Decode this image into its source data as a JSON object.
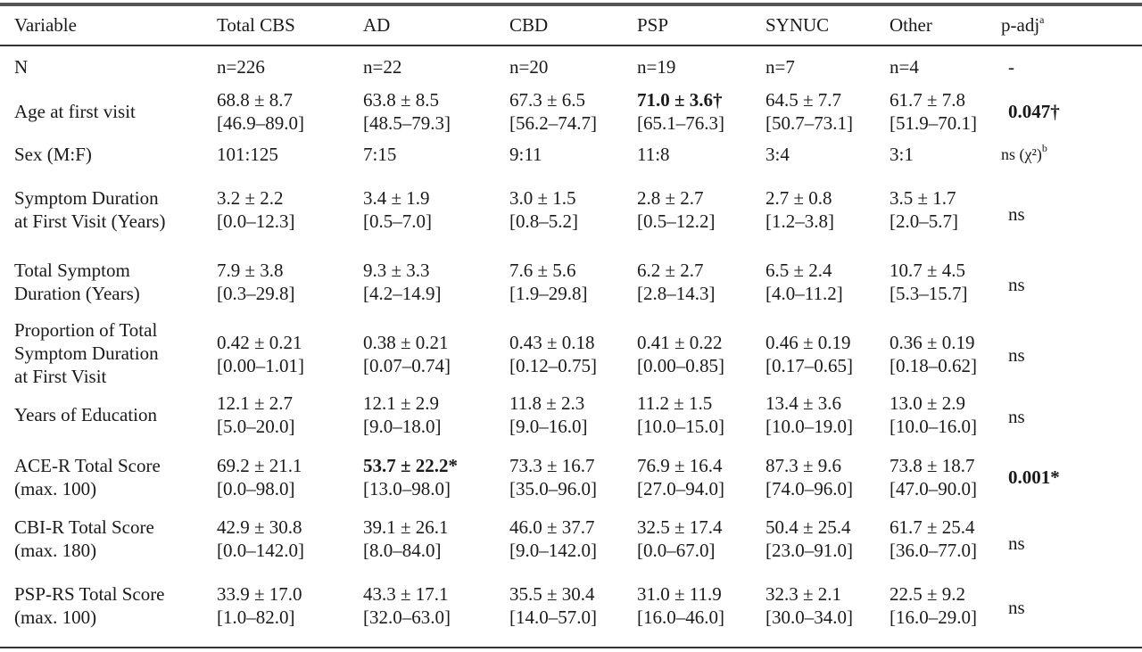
{
  "header": [
    "Variable",
    "Total CBS",
    "AD",
    "CBD",
    "PSP",
    "SYNUC",
    "Other",
    "p-adj"
  ],
  "header_sup": "a",
  "rows": [
    {
      "label": [
        "N"
      ],
      "cells": [
        [
          "n=226"
        ],
        [
          "n=22"
        ],
        [
          "n=20"
        ],
        [
          "n=19"
        ],
        [
          "n=7"
        ],
        [
          "n=4"
        ]
      ],
      "p": "-"
    },
    {
      "label": [
        "Age at first visit"
      ],
      "cells": [
        [
          "68.8 ± 8.7",
          "[46.9–89.0]"
        ],
        [
          "63.8 ± 8.5",
          "[48.5–79.3]"
        ],
        [
          "67.3 ± 6.5",
          "[56.2–74.7]"
        ],
        [
          "71.0 ± 3.6†",
          "[65.1–76.3]"
        ],
        [
          "64.5 ± 7.7",
          "[50.7–73.1]"
        ],
        [
          "61.7 ± 7.8",
          "[51.9–70.1]"
        ]
      ],
      "p": "0.047†"
    },
    {
      "label": [
        "Sex (M:F)"
      ],
      "cells": [
        [
          "101:125"
        ],
        [
          "7:15"
        ],
        [
          "9:11"
        ],
        [
          "11:8"
        ],
        [
          "3:4"
        ],
        [
          "3:1"
        ]
      ],
      "p": "ns (χ²)",
      "p_sup": "b"
    },
    {
      "label": [
        "Symptom Duration",
        "at First Visit (Years)"
      ],
      "cells": [
        [
          "3.2 ± 2.2",
          "[0.0–12.3]"
        ],
        [
          "3.4 ± 1.9",
          "[0.5–7.0]"
        ],
        [
          "3.0 ± 1.5",
          "[0.8–5.2]"
        ],
        [
          "2.8 ± 2.7",
          "[0.5–12.2]"
        ],
        [
          "2.7 ± 0.8",
          "[1.2–3.8]"
        ],
        [
          "3.5 ± 1.7",
          "[2.0–5.7]"
        ]
      ],
      "p": "ns"
    },
    {
      "label": [
        "Total Symptom",
        "Duration (Years)"
      ],
      "cells": [
        [
          "7.9 ± 3.8",
          "[0.3–29.8]"
        ],
        [
          "9.3 ± 3.3",
          "[4.2–14.9]"
        ],
        [
          "7.6 ± 5.6",
          "[1.9–29.8]"
        ],
        [
          "6.2 ± 2.7",
          "[2.8–14.3]"
        ],
        [
          "6.5 ± 2.4",
          "[4.0–11.2]"
        ],
        [
          "10.7 ± 4.5",
          "[5.3–15.7]"
        ]
      ],
      "p": "ns"
    },
    {
      "label": [
        "Proportion of Total",
        "Symptom Duration",
        "at First Visit"
      ],
      "cells": [
        [
          "0.42 ± 0.21",
          "[0.00–1.01]"
        ],
        [
          "0.38 ± 0.21",
          "[0.07–0.74]"
        ],
        [
          "0.43 ± 0.18",
          "[0.12–0.75]"
        ],
        [
          "0.41 ± 0.22",
          "[0.00–0.85]"
        ],
        [
          "0.46 ± 0.19",
          "[0.17–0.65]"
        ],
        [
          "0.36 ± 0.19",
          "[0.18–0.62]"
        ]
      ],
      "p": "ns"
    },
    {
      "label": [
        "Years of Education"
      ],
      "cells": [
        [
          "12.1 ± 2.7",
          "[5.0–20.0]"
        ],
        [
          "12.1 ± 2.9",
          "[9.0–18.0]"
        ],
        [
          "11.8 ± 2.3",
          "[9.0–16.0]"
        ],
        [
          "11.2 ± 1.5",
          "[10.0–15.0]"
        ],
        [
          "13.4 ± 3.6",
          "[10.0–19.0]"
        ],
        [
          "13.0 ± 2.9",
          "[10.0–16.0]"
        ]
      ],
      "p": "ns"
    },
    {
      "label": [
        "ACE-R Total Score",
        "(max. 100)"
      ],
      "cells": [
        [
          "69.2 ± 21.1",
          "[0.0–98.0]"
        ],
        [
          "53.7 ± 22.2*",
          "[13.0–98.0]"
        ],
        [
          "73.3 ± 16.7",
          "[35.0–96.0]"
        ],
        [
          "76.9 ± 16.4",
          "[27.0–94.0]"
        ],
        [
          "87.3 ± 9.6",
          "[74.0–96.0]"
        ],
        [
          "73.8 ± 18.7",
          "[47.0–90.0]"
        ]
      ],
      "p": "0.001*"
    },
    {
      "label": [
        "CBI-R Total Score",
        "(max. 180)"
      ],
      "cells": [
        [
          "42.9 ± 30.8",
          "[0.0–142.0]"
        ],
        [
          "39.1 ± 26.1",
          "[8.0–84.0]"
        ],
        [
          "46.0 ± 37.7",
          "[9.0–142.0]"
        ],
        [
          "32.5 ± 17.4",
          "[0.0–67.0]"
        ],
        [
          "50.4 ± 25.4",
          "[23.0–91.0]"
        ],
        [
          "61.7 ± 25.4",
          "[36.0–77.0]"
        ]
      ],
      "p": "ns"
    },
    {
      "label": [
        "PSP-RS Total Score",
        "(max. 100)"
      ],
      "cells": [
        [
          "33.9 ± 17.0",
          "[1.0–82.0]"
        ],
        [
          "43.3 ± 17.1",
          "[32.0–63.0]"
        ],
        [
          "35.5 ± 30.4",
          "[14.0–57.0]"
        ],
        [
          "31.0 ± 11.9",
          "[16.0–46.0]"
        ],
        [
          "32.3 ± 2.1",
          "[30.0–34.0]"
        ],
        [
          "22.5 ± 9.2",
          "[16.0–29.0]"
        ]
      ],
      "p": "ns"
    }
  ]
}
